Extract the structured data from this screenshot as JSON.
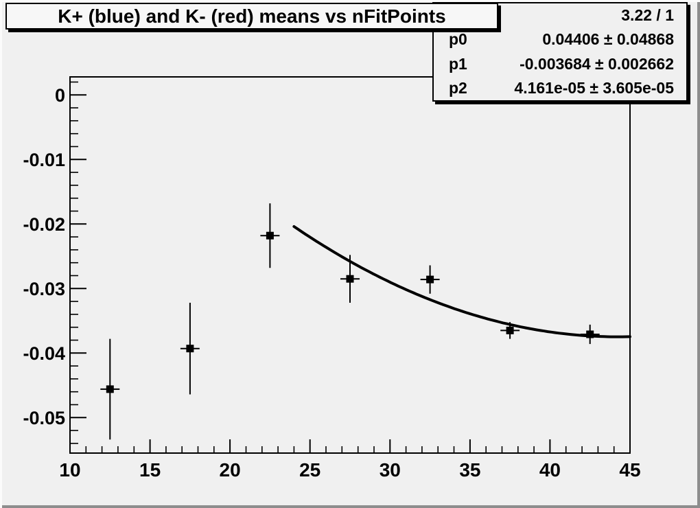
{
  "window": {
    "background": "#f0f0f0",
    "plot_color": "#000000"
  },
  "title_box": {
    "text": "K+ (blue) and K- (red) means vs nFitPoints"
  },
  "stats_box": {
    "chi2_ndf": "3.22 / 1",
    "rows": [
      {
        "label": "p0",
        "value": "0.04406 ± 0.04868"
      },
      {
        "label": "p1",
        "value": "-0.003684 ± 0.002662"
      },
      {
        "label": "p2",
        "value": "4.161e-05 ± 3.605e-05"
      }
    ]
  },
  "chart_data": {
    "type": "scatter",
    "title": "K+ (blue) and K- (red) means vs nFitPoints",
    "xlabel": "",
    "ylabel": "",
    "grid": false,
    "legend": "none",
    "xlim": [
      10,
      45
    ],
    "ylim": [
      -0.0555,
      0.0028
    ],
    "x_ticks": [
      {
        "v": 10,
        "label": "10"
      },
      {
        "v": 15,
        "label": "15"
      },
      {
        "v": 20,
        "label": "20"
      },
      {
        "v": 25,
        "label": "25"
      },
      {
        "v": 30,
        "label": "30"
      },
      {
        "v": 35,
        "label": "35"
      },
      {
        "v": 40,
        "label": "40"
      },
      {
        "v": 45,
        "label": "45"
      }
    ],
    "x_minor_step": 1,
    "y_ticks": [
      {
        "v": 0,
        "label": "0"
      },
      {
        "v": -0.01,
        "label": "-0.01"
      },
      {
        "v": -0.02,
        "label": "-0.02"
      },
      {
        "v": -0.03,
        "label": "-0.03"
      },
      {
        "v": -0.04,
        "label": "-0.04"
      },
      {
        "v": -0.05,
        "label": "-0.05"
      }
    ],
    "y_minor_step": 0.002,
    "marker": "filled-square",
    "color": "#000000",
    "points": [
      {
        "x": 12.5,
        "y": -0.0456,
        "ey": 0.0078,
        "ex": 0.6
      },
      {
        "x": 17.5,
        "y": -0.0393,
        "ey": 0.0071,
        "ex": 0.6
      },
      {
        "x": 22.5,
        "y": -0.0218,
        "ey": 0.005,
        "ex": 0.6
      },
      {
        "x": 27.5,
        "y": -0.0285,
        "ey": 0.0037,
        "ex": 0.6
      },
      {
        "x": 32.5,
        "y": -0.0286,
        "ey": 0.0022,
        "ex": 0.6
      },
      {
        "x": 37.5,
        "y": -0.0365,
        "ey": 0.0013,
        "ex": 0.6
      },
      {
        "x": 42.5,
        "y": -0.0371,
        "ey": 0.0015,
        "ex": 0.6
      }
    ],
    "fit_curve": {
      "form": "p0 + p1*x + p2*x^2",
      "p0": 0.04406,
      "p1": -0.003684,
      "p2": 4.161e-05,
      "x_range": [
        24,
        45
      ]
    }
  }
}
